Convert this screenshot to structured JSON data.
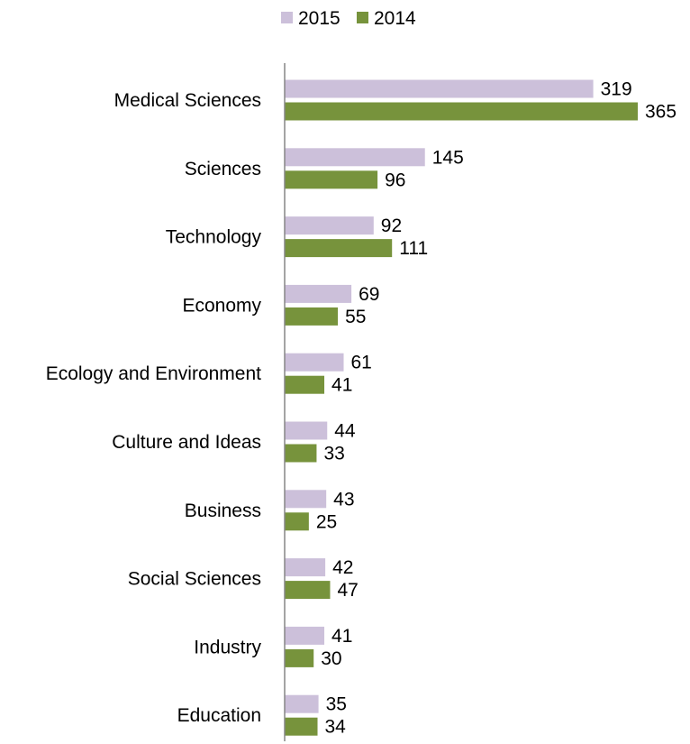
{
  "chart_data": {
    "type": "bar",
    "orientation": "horizontal",
    "legend_position": "top",
    "grid": false,
    "title": "",
    "xlabel": "",
    "ylabel": "",
    "xlim": [
      0,
      365
    ],
    "categories": [
      "Medical Sciences",
      "Sciences",
      "Technology",
      "Economy",
      "Ecology and Environment",
      "Culture and Ideas",
      "Business",
      "Social Sciences",
      "Industry",
      "Education"
    ],
    "series": [
      {
        "name": "2015",
        "color": "#ccc0da",
        "values": [
          319,
          145,
          92,
          69,
          61,
          44,
          43,
          42,
          41,
          35
        ]
      },
      {
        "name": "2014",
        "color": "#77933c",
        "values": [
          365,
          96,
          111,
          55,
          41,
          33,
          25,
          47,
          30,
          34
        ]
      }
    ]
  }
}
